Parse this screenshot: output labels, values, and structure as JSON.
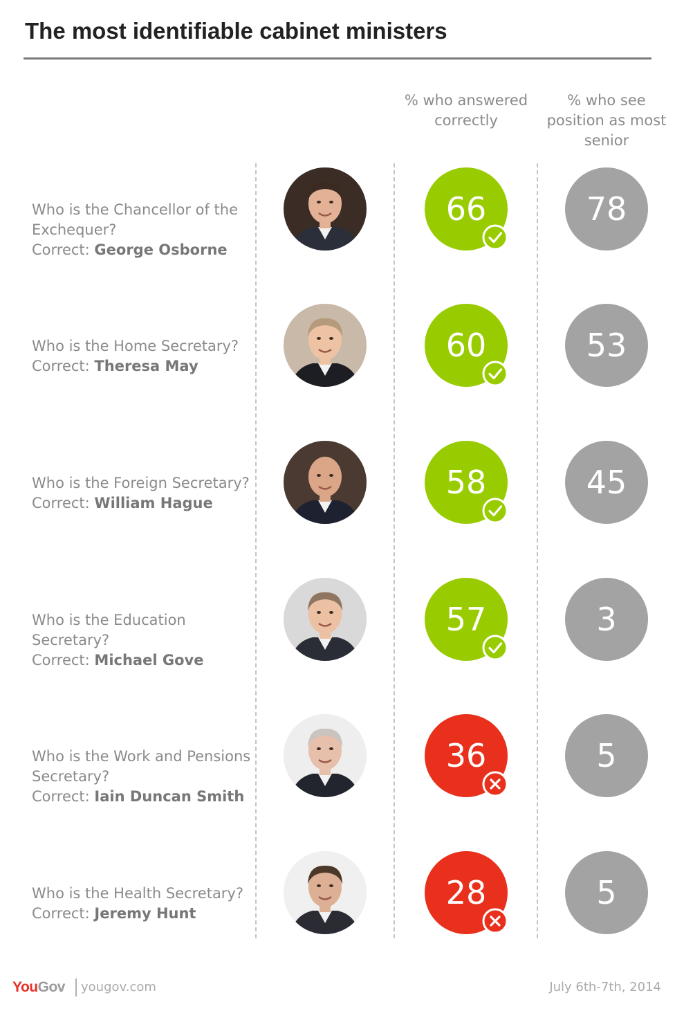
{
  "title": "The most identifiable cabinet ministers",
  "columns": {
    "correct": "% who answered correctly",
    "senior": "% who see position as most senior"
  },
  "colors": {
    "correct": "#99cc00",
    "incorrect": "#e8301c",
    "senior": "#a3a3a4"
  },
  "correct_prefix": "Correct:",
  "rows": [
    {
      "question": "Who is the Chancellor of the Exchequer?",
      "answer": "George Osborne",
      "correct_pct": "66",
      "senior_pct": "78",
      "status": "correct",
      "status_icon": "check-icon"
    },
    {
      "question": "Who is the Home Secretary?",
      "answer": "Theresa May",
      "correct_pct": "60",
      "senior_pct": "53",
      "status": "correct",
      "status_icon": "check-icon"
    },
    {
      "question": "Who is the Foreign Secretary?",
      "answer": "William Hague",
      "correct_pct": "58",
      "senior_pct": "45",
      "status": "correct",
      "status_icon": "check-icon"
    },
    {
      "question": "Who is the Education Secretary?",
      "answer": "Michael Gove",
      "correct_pct": "57",
      "senior_pct": "3",
      "status": "correct",
      "status_icon": "check-icon"
    },
    {
      "question": "Who is the Work and Pensions Secretary?",
      "answer": "Iain Duncan Smith",
      "correct_pct": "36",
      "senior_pct": "5",
      "status": "incorrect",
      "status_icon": "cross-icon"
    },
    {
      "question": "Who is the Health Secretary?",
      "answer": "Jeremy Hunt",
      "correct_pct": "28",
      "senior_pct": "5",
      "status": "incorrect",
      "status_icon": "cross-icon"
    }
  ],
  "footer": {
    "logo_you": "You",
    "logo_gov": "Gov",
    "url": "yougov.com",
    "date": "July 6th-7th, 2014"
  },
  "chart_data": {
    "type": "table",
    "title": "The most identifiable cabinet ministers",
    "columns": [
      "% who answered correctly",
      "% who see position as most senior"
    ],
    "categories": [
      "Chancellor of the Exchequer",
      "Home Secretary",
      "Foreign Secretary",
      "Education Secretary",
      "Work and Pensions Secretary",
      "Health Secretary"
    ],
    "series": [
      {
        "name": "% who answered correctly",
        "values": [
          66,
          60,
          58,
          57,
          36,
          28
        ]
      },
      {
        "name": "% who see position as most senior",
        "values": [
          78,
          53,
          45,
          3,
          5,
          5
        ]
      }
    ]
  }
}
